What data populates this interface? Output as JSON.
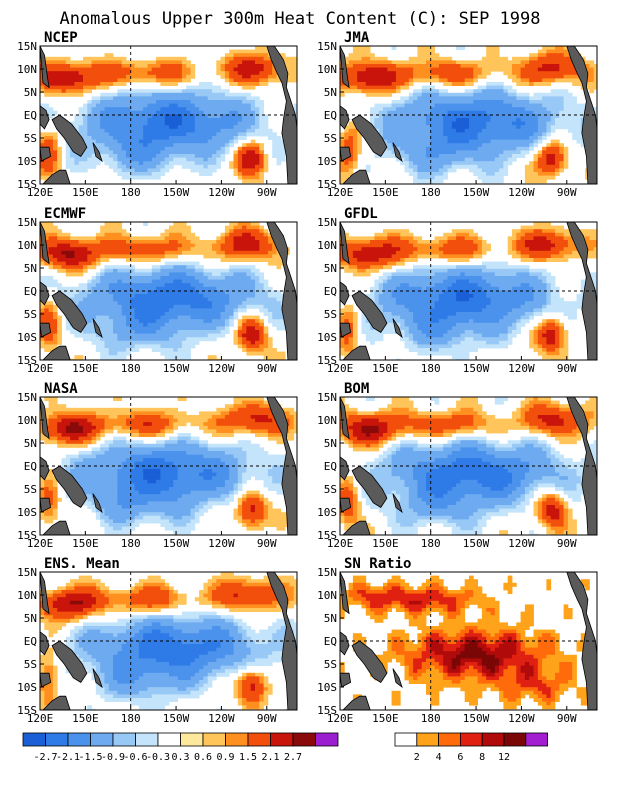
{
  "title": "Anomalous Upper 300m Heat Content (C): SEP 1998",
  "colors": {
    "land": "#5a5a5a",
    "anomaly_scale": [
      "#1a5fd6",
      "#2e7ae6",
      "#4b92ec",
      "#6eaaf0",
      "#98c8f5",
      "#c3e4fb",
      "#ffffff",
      "#fde89b",
      "#ffc55a",
      "#ff8f1f",
      "#f24e0c",
      "#c8140a",
      "#8a0a0a",
      "#9b1fd1"
    ],
    "sn_scale": [
      "#ffffff",
      "#ffa31a",
      "#ff6a0a",
      "#e02010",
      "#b00a0a",
      "#7a0606",
      "#a21ed0"
    ]
  },
  "chart_data": [
    {
      "type": "heatmap",
      "title": "NCEP",
      "xlabel": "",
      "ylabel": "",
      "x_ticks": [
        "120E",
        "150E",
        "180",
        "150W",
        "120W",
        "90W"
      ],
      "y_ticks": [
        "15N",
        "10N",
        "5N",
        "EQ",
        "5S",
        "10S",
        "15S"
      ],
      "xlim": [
        120,
        290
      ],
      "ylim": [
        -15,
        15
      ]
    },
    {
      "type": "heatmap",
      "title": "JMA",
      "x_ticks": [
        "120E",
        "150E",
        "180",
        "150W",
        "120W",
        "90W"
      ],
      "y_ticks": [
        "15N",
        "10N",
        "5N",
        "EQ",
        "5S",
        "10S",
        "15S"
      ],
      "xlim": [
        120,
        290
      ],
      "ylim": [
        -15,
        15
      ]
    },
    {
      "type": "heatmap",
      "title": "ECMWF",
      "x_ticks": [
        "120E",
        "150E",
        "180",
        "150W",
        "120W",
        "90W"
      ],
      "y_ticks": [
        "15N",
        "10N",
        "5N",
        "EQ",
        "5S",
        "10S",
        "15S"
      ],
      "xlim": [
        120,
        290
      ],
      "ylim": [
        -15,
        15
      ]
    },
    {
      "type": "heatmap",
      "title": "GFDL",
      "x_ticks": [
        "120E",
        "150E",
        "180",
        "150W",
        "120W",
        "90W"
      ],
      "y_ticks": [
        "15N",
        "10N",
        "5N",
        "EQ",
        "5S",
        "10S",
        "15S"
      ],
      "xlim": [
        120,
        290
      ],
      "ylim": [
        -15,
        15
      ]
    },
    {
      "type": "heatmap",
      "title": "NASA",
      "x_ticks": [
        "120E",
        "150E",
        "180",
        "150W",
        "120W",
        "90W"
      ],
      "y_ticks": [
        "15N",
        "10N",
        "5N",
        "EQ",
        "5S",
        "10S",
        "15S"
      ],
      "xlim": [
        120,
        290
      ],
      "ylim": [
        -15,
        15
      ]
    },
    {
      "type": "heatmap",
      "title": "BOM",
      "x_ticks": [
        "120E",
        "150E",
        "180",
        "150W",
        "120W",
        "90W"
      ],
      "y_ticks": [
        "15N",
        "10N",
        "5N",
        "EQ",
        "5S",
        "10S",
        "15S"
      ],
      "xlim": [
        120,
        290
      ],
      "ylim": [
        -15,
        15
      ]
    },
    {
      "type": "heatmap",
      "title": "ENS. Mean",
      "x_ticks": [
        "120E",
        "150E",
        "180",
        "150W",
        "120W",
        "90W"
      ],
      "y_ticks": [
        "15N",
        "10N",
        "5N",
        "EQ",
        "5S",
        "10S",
        "15S"
      ],
      "xlim": [
        120,
        290
      ],
      "ylim": [
        -15,
        15
      ]
    },
    {
      "type": "heatmap",
      "title": "SN Ratio",
      "x_ticks": [
        "120E",
        "150E",
        "180",
        "150W",
        "120W",
        "90W"
      ],
      "y_ticks": [
        "15N",
        "10N",
        "5N",
        "EQ",
        "5S",
        "10S",
        "15S"
      ],
      "xlim": [
        120,
        290
      ],
      "ylim": [
        -15,
        15
      ]
    }
  ],
  "legend_anomaly": {
    "labels": [
      "-2.7",
      "-2.1",
      "-1.5",
      "-0.9",
      "-0.6",
      "-0.3",
      "0.3",
      "0.6",
      "0.9",
      "1.5",
      "2.1",
      "2.7"
    ]
  },
  "legend_sn": {
    "labels": [
      "2",
      "4",
      "6",
      "8",
      "12"
    ]
  }
}
